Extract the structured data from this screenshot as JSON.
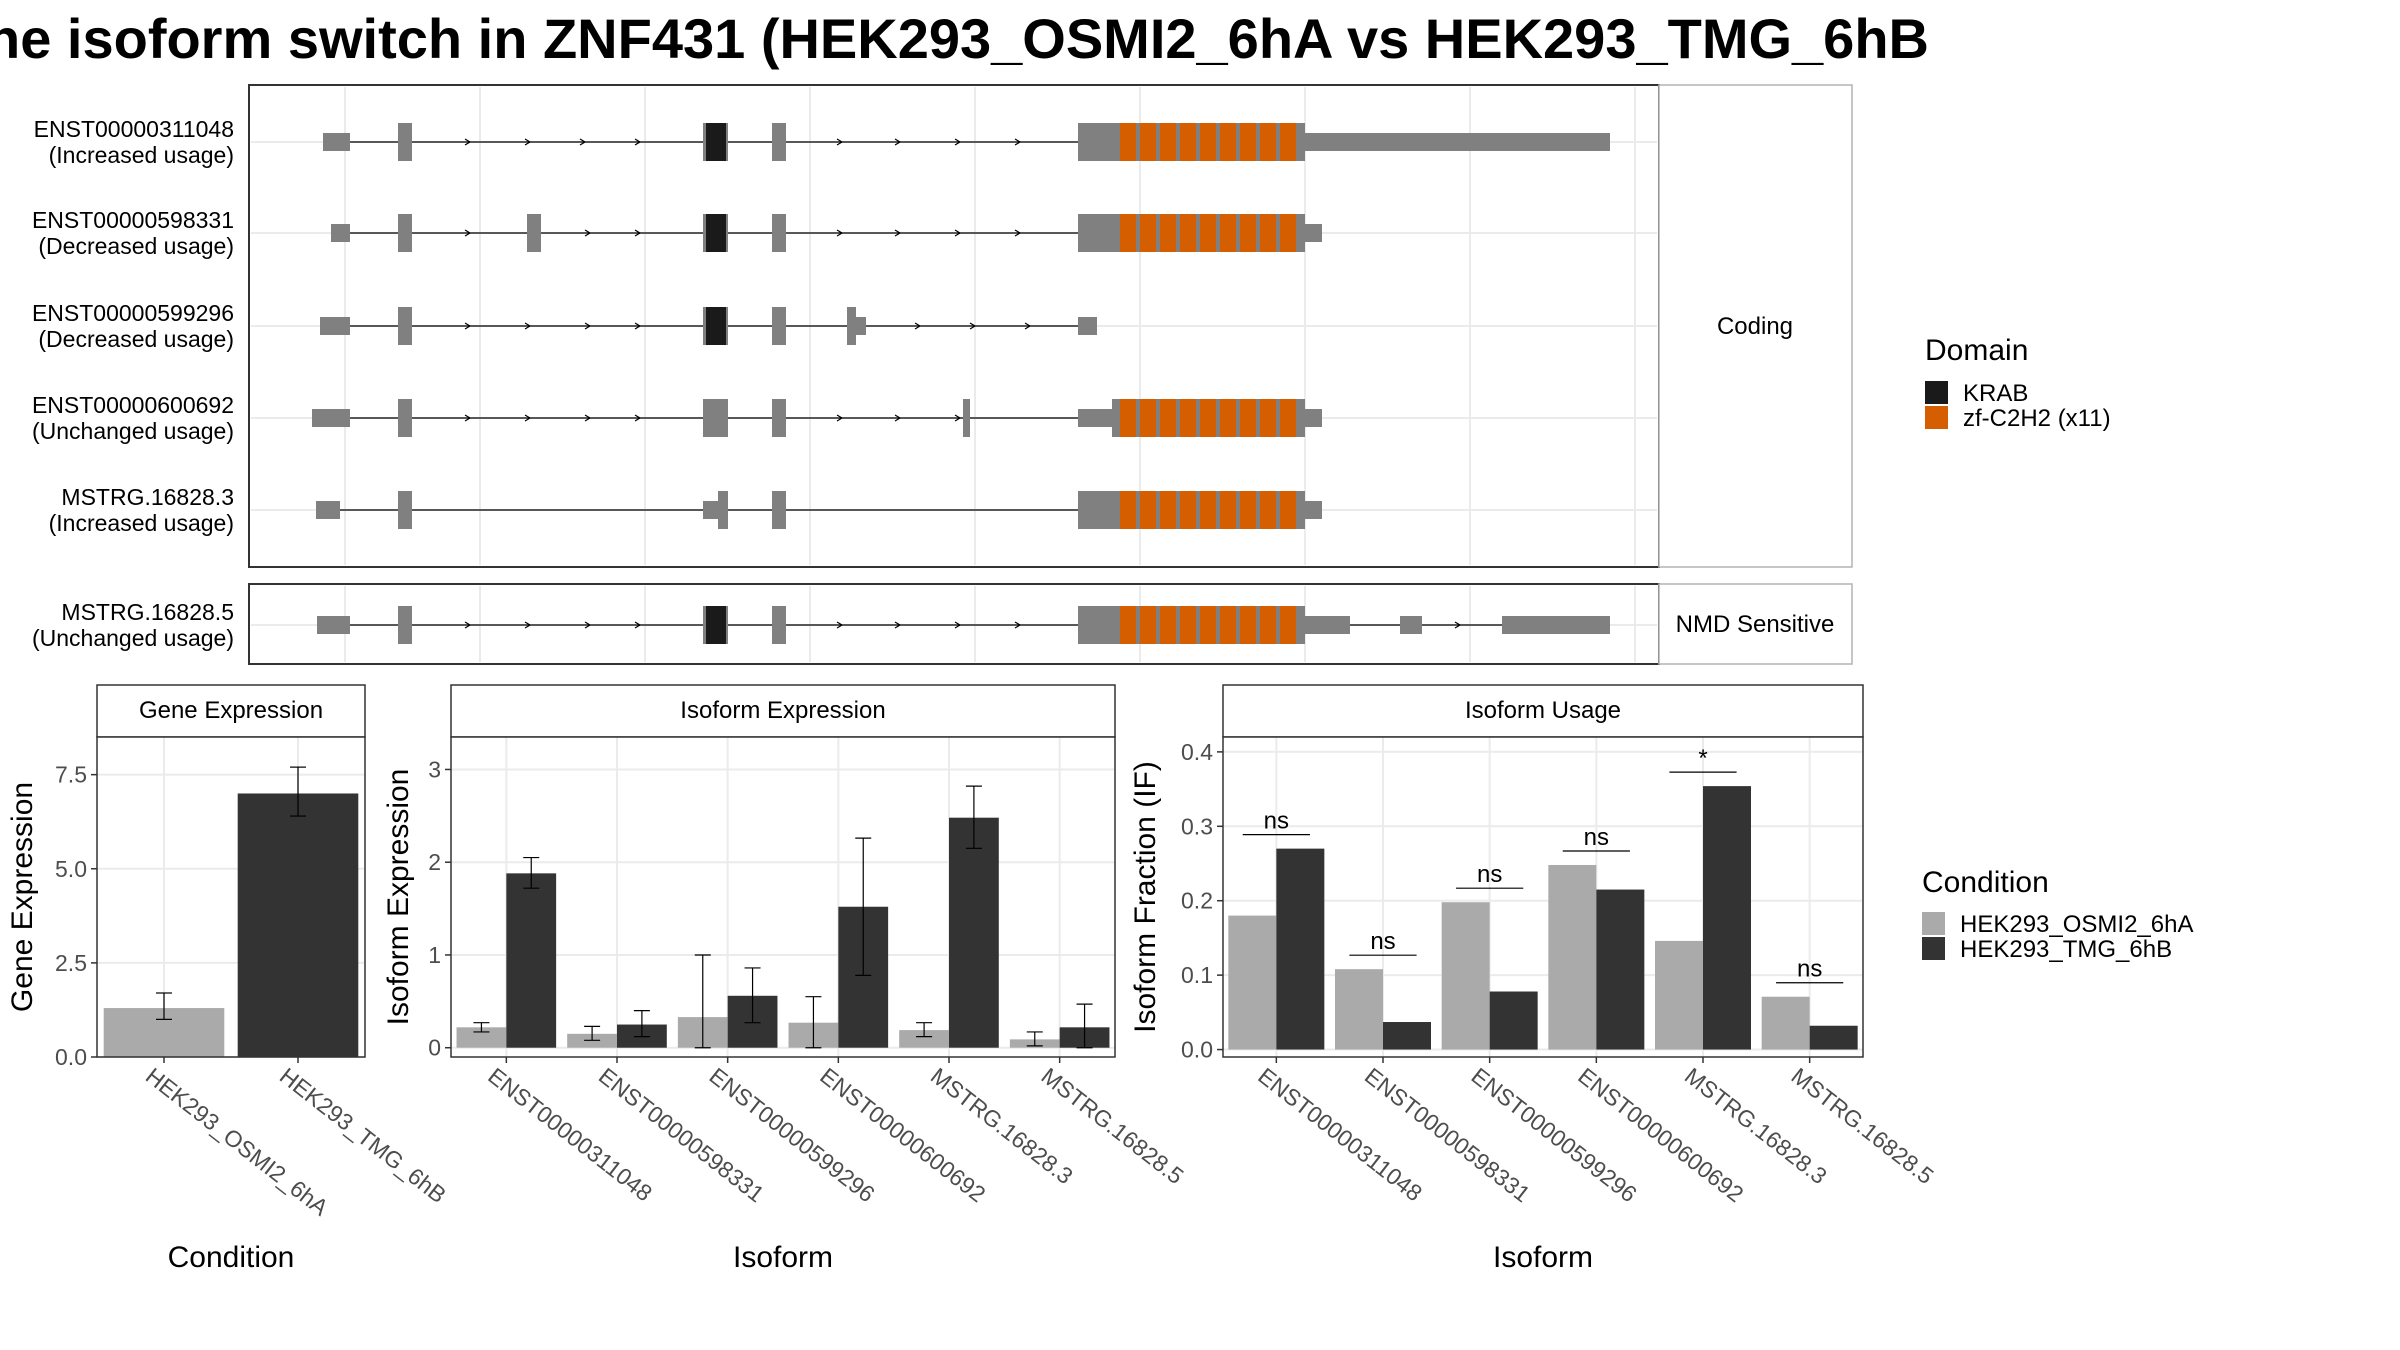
{
  "title": "he isoform switch in ZNF431 (HEK293_OSMI2_6hA vs HEK293_TMG_6hB",
  "colors": {
    "exon": "#808080",
    "krab": "#1a1a1a",
    "zf": "#d55e00",
    "cond_a": "#aaaaaa",
    "cond_b": "#333333",
    "strip_bg": "#ffffff",
    "grid": "#ebebeb"
  },
  "structure": {
    "domain_legend_title": "Domain",
    "domains": [
      "KRAB",
      "zf-C2H2 (x11)"
    ],
    "facets": [
      "Coding",
      "NMD Sensitive"
    ],
    "isoforms": [
      {
        "id": "ENST00000311048",
        "usage": "(Increased usage)",
        "facet": "Coding"
      },
      {
        "id": "ENST00000598331",
        "usage": "(Decreased usage)",
        "facet": "Coding"
      },
      {
        "id": "ENST00000599296",
        "usage": "(Decreased usage)",
        "facet": "Coding"
      },
      {
        "id": "ENST00000600692",
        "usage": "(Unchanged usage)",
        "facet": "Coding"
      },
      {
        "id": "MSTRG.16828.3",
        "usage": "(Increased usage)",
        "facet": "Coding"
      },
      {
        "id": "MSTRG.16828.5",
        "usage": "(Unchanged usage)",
        "facet": "NMD Sensitive"
      }
    ]
  },
  "chart_data": [
    {
      "type": "bar",
      "title": "Gene Expression",
      "xlabel": "Condition",
      "ylabel": "Gene Expression",
      "ylim": [
        0,
        8.5
      ],
      "yticks": [
        "0.0",
        "2.5",
        "5.0",
        "7.5"
      ],
      "categories": [
        "HEK293_OSMI2_6hA",
        "HEK293_TMG_6hB"
      ],
      "values": [
        1.3,
        7.0
      ],
      "error_low": [
        1.0,
        6.4
      ],
      "error_high": [
        1.7,
        7.7
      ]
    },
    {
      "type": "bar",
      "title": "Isoform Expression",
      "xlabel": "Isoform",
      "ylabel": "Isoform Expression",
      "ylim": [
        -0.1,
        3.35
      ],
      "yticks": [
        "0",
        "1",
        "2",
        "3"
      ],
      "categories": [
        "ENST00000311048",
        "ENST00000598331",
        "ENST00000599296",
        "ENST00000600692",
        "MSTRG.16828.3",
        "MSTRG.16828.5"
      ],
      "series": [
        {
          "name": "HEK293_OSMI2_6hA",
          "values": [
            0.22,
            0.15,
            0.33,
            0.27,
            0.19,
            0.09
          ],
          "error_low": [
            0.17,
            0.08,
            0.0,
            0.0,
            0.12,
            0.02
          ],
          "error_high": [
            0.27,
            0.23,
            1.0,
            0.55,
            0.27,
            0.17
          ]
        },
        {
          "name": "HEK293_TMG_6hB",
          "values": [
            1.88,
            0.25,
            0.56,
            1.52,
            2.48,
            0.22
          ],
          "error_low": [
            1.72,
            0.12,
            0.27,
            0.78,
            2.15,
            0.0
          ],
          "error_high": [
            2.05,
            0.4,
            0.86,
            2.26,
            2.82,
            0.47
          ]
        }
      ]
    },
    {
      "type": "bar",
      "title": "Isoform Usage",
      "xlabel": "Isoform",
      "ylabel": "Isoform Fraction (IF)",
      "ylim": [
        -0.01,
        0.42
      ],
      "yticks": [
        "0.0",
        "0.1",
        "0.2",
        "0.3",
        "0.4"
      ],
      "categories": [
        "ENST00000311048",
        "ENST00000598331",
        "ENST00000599296",
        "ENST00000600692",
        "MSTRG.16828.3",
        "MSTRG.16828.5"
      ],
      "series": [
        {
          "name": "HEK293_OSMI2_6hA",
          "values": [
            0.18,
            0.108,
            0.198,
            0.248,
            0.146,
            0.071
          ]
        },
        {
          "name": "HEK293_TMG_6hB",
          "values": [
            0.27,
            0.037,
            0.078,
            0.215,
            0.354,
            0.032
          ]
        }
      ],
      "significance": [
        "ns",
        "ns",
        "ns",
        "ns",
        "*",
        "ns"
      ]
    }
  ],
  "condition_legend": {
    "title": "Condition",
    "items": [
      "HEK293_OSMI2_6hA",
      "HEK293_TMG_6hB"
    ]
  }
}
